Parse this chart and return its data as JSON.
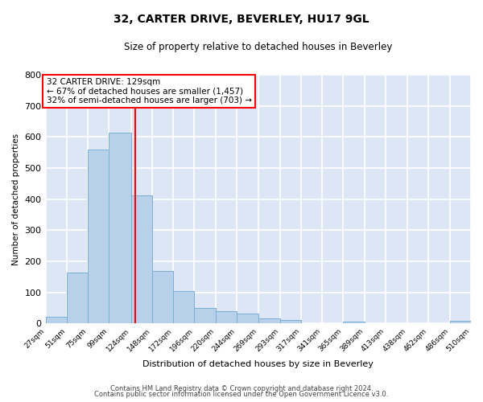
{
  "title": "32, CARTER DRIVE, BEVERLEY, HU17 9GL",
  "subtitle": "Size of property relative to detached houses in Beverley",
  "xlabel": "Distribution of detached houses by size in Beverley",
  "ylabel": "Number of detached properties",
  "bar_color": "#b8d0ea",
  "bar_edge_color": "#7aafd4",
  "plot_bg_color": "#dce6f5",
  "fig_bg_color": "#ffffff",
  "grid_color": "#ffffff",
  "vline_x": 129,
  "vline_color": "red",
  "bin_edges": [
    27,
    51,
    75,
    99,
    124,
    148,
    172,
    196,
    220,
    244,
    269,
    293,
    317,
    341,
    365,
    389,
    413,
    438,
    462,
    486,
    510
  ],
  "bar_heights": [
    20,
    163,
    560,
    615,
    412,
    170,
    103,
    51,
    40,
    32,
    15,
    10,
    0,
    0,
    7,
    0,
    0,
    0,
    0,
    8
  ],
  "xtick_labels": [
    "27sqm",
    "51sqm",
    "75sqm",
    "99sqm",
    "124sqm",
    "148sqm",
    "172sqm",
    "196sqm",
    "220sqm",
    "244sqm",
    "269sqm",
    "293sqm",
    "317sqm",
    "341sqm",
    "365sqm",
    "389sqm",
    "413sqm",
    "438sqm",
    "462sqm",
    "486sqm",
    "510sqm"
  ],
  "ylim": [
    0,
    800
  ],
  "yticks": [
    0,
    100,
    200,
    300,
    400,
    500,
    600,
    700,
    800
  ],
  "annotation_title": "32 CARTER DRIVE: 129sqm",
  "annotation_line1": "← 67% of detached houses are smaller (1,457)",
  "annotation_line2": "32% of semi-detached houses are larger (703) →",
  "footer_line1": "Contains HM Land Registry data © Crown copyright and database right 2024.",
  "footer_line2": "Contains public sector information licensed under the Open Government Licence v3.0."
}
